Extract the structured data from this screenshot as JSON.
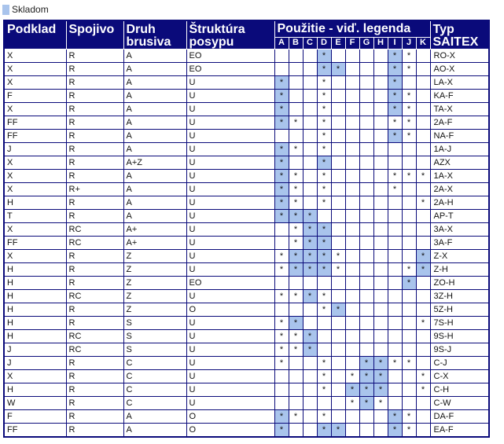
{
  "legend": {
    "label": "Skladom",
    "color": "#a9c4ec"
  },
  "header": {
    "podklad": "Podklad",
    "spojivo": "Spojivo",
    "druh": "Druh brusiva",
    "struktura": "Štruktúra posypu",
    "pouzitie": "Použitie - viď. legenda",
    "typ": "Typ SAITEX"
  },
  "letters": [
    "A",
    "B",
    "C",
    "D",
    "E",
    "F",
    "G",
    "H",
    "I",
    "J",
    "K"
  ],
  "rows": [
    {
      "p": "X",
      "s": "R",
      "d": "A",
      "st": "EO",
      "u": [
        "",
        "",
        "",
        "*",
        "",
        "",
        "",
        "",
        "*",
        "*",
        ""
      ],
      "h": [
        3,
        8
      ],
      "t": "RO-X"
    },
    {
      "p": "X",
      "s": "R",
      "d": "A",
      "st": "EO",
      "u": [
        "",
        "",
        "",
        "*",
        "*",
        "",
        "",
        "",
        "*",
        "*",
        ""
      ],
      "h": [
        3,
        4,
        8
      ],
      "t": "AO-X"
    },
    {
      "p": "X",
      "s": "R",
      "d": "A",
      "st": "U",
      "u": [
        "*",
        "",
        "",
        "*",
        "",
        "",
        "",
        "",
        "*",
        "",
        ""
      ],
      "h": [
        0,
        8
      ],
      "t": "LA-X"
    },
    {
      "p": "F",
      "s": "R",
      "d": "A",
      "st": "U",
      "u": [
        "*",
        "",
        "",
        "*",
        "",
        "",
        "",
        "",
        "*",
        "*",
        ""
      ],
      "h": [
        0,
        8
      ],
      "t": "KA-F"
    },
    {
      "p": "X",
      "s": "R",
      "d": "A",
      "st": "U",
      "u": [
        "*",
        "",
        "",
        "*",
        "",
        "",
        "",
        "",
        "*",
        "*",
        ""
      ],
      "h": [
        0,
        8
      ],
      "t": "TA-X"
    },
    {
      "p": "FF",
      "s": "R",
      "d": "A",
      "st": "U",
      "u": [
        "*",
        "*",
        "",
        "*",
        "",
        "",
        "",
        "",
        "*",
        "*",
        ""
      ],
      "h": [
        0
      ],
      "t": "2A-F"
    },
    {
      "p": "FF",
      "s": "R",
      "d": "A",
      "st": "U",
      "u": [
        "",
        "",
        "",
        "*",
        "",
        "",
        "",
        "",
        "*",
        "*",
        ""
      ],
      "h": [
        8
      ],
      "t": "NA-F"
    },
    {
      "p": "J",
      "s": "R",
      "d": "A",
      "st": "U",
      "u": [
        "*",
        "*",
        "",
        "*",
        "",
        "",
        "",
        "",
        "",
        "",
        ""
      ],
      "h": [
        0
      ],
      "t": "1A-J"
    },
    {
      "p": "X",
      "s": "R",
      "d": "A+Z",
      "st": "U",
      "u": [
        "*",
        "",
        "",
        "*",
        "",
        "",
        "",
        "",
        "",
        "",
        ""
      ],
      "h": [
        0,
        3
      ],
      "t": "AZX"
    },
    {
      "p": "X",
      "s": "R",
      "d": "A",
      "st": "U",
      "u": [
        "*",
        "*",
        "",
        "*",
        "",
        "",
        "",
        "",
        "*",
        "*",
        "*"
      ],
      "h": [
        0
      ],
      "t": "1A-X"
    },
    {
      "p": "X",
      "s": "R+",
      "d": "A",
      "st": "U",
      "u": [
        "*",
        "*",
        "",
        "*",
        "",
        "",
        "",
        "",
        "*",
        "",
        ""
      ],
      "h": [
        0
      ],
      "t": "2A-X"
    },
    {
      "p": "H",
      "s": "R",
      "d": "A",
      "st": "U",
      "u": [
        "*",
        "*",
        "",
        "*",
        "",
        "",
        "",
        "",
        "",
        "",
        "*"
      ],
      "h": [
        0
      ],
      "t": "2A-H"
    },
    {
      "p": "T",
      "s": "R",
      "d": "A",
      "st": "U",
      "u": [
        "*",
        "*",
        "*",
        "",
        "",
        "",
        "",
        "",
        "",
        "",
        ""
      ],
      "h": [
        0,
        1,
        2
      ],
      "t": "AP-T"
    },
    {
      "p": "X",
      "s": "RC",
      "d": "A+",
      "st": "U",
      "u": [
        "",
        "*",
        "*",
        "*",
        "",
        "",
        "",
        "",
        "",
        "",
        ""
      ],
      "h": [
        2,
        3
      ],
      "t": "3A-X"
    },
    {
      "p": "FF",
      "s": "RC",
      "d": "A+",
      "st": "U",
      "u": [
        "",
        "*",
        "*",
        "*",
        "",
        "",
        "",
        "",
        "",
        "",
        ""
      ],
      "h": [
        2,
        3
      ],
      "t": "3A-F"
    },
    {
      "p": "X",
      "s": "R",
      "d": "Z",
      "st": "U",
      "u": [
        "*",
        "*",
        "*",
        "*",
        "*",
        "",
        "",
        "",
        "",
        "",
        "*"
      ],
      "h": [
        1,
        2,
        3,
        10
      ],
      "t": "Z-X"
    },
    {
      "p": "H",
      "s": "R",
      "d": "Z",
      "st": "U",
      "u": [
        "*",
        "*",
        "*",
        "*",
        "*",
        "",
        "",
        "",
        "",
        "*",
        "*"
      ],
      "h": [
        1,
        2,
        3,
        10
      ],
      "t": "Z-H"
    },
    {
      "p": "H",
      "s": "R",
      "d": "Z",
      "st": "EO",
      "u": [
        "",
        "",
        "",
        "",
        "",
        "",
        "",
        "",
        "",
        "*",
        ""
      ],
      "h": [
        9
      ],
      "t": "ZO-H"
    },
    {
      "p": "H",
      "s": "RC",
      "d": "Z",
      "st": "U",
      "u": [
        "*",
        "*",
        "*",
        "*",
        "",
        "",
        "",
        "",
        "",
        "",
        ""
      ],
      "h": [
        2
      ],
      "t": "3Z-H"
    },
    {
      "p": "H",
      "s": "R",
      "d": "Z",
      "st": "O",
      "u": [
        "",
        "",
        "",
        "*",
        "*",
        "",
        "",
        "",
        "",
        "",
        ""
      ],
      "h": [
        4
      ],
      "t": "5Z-H"
    },
    {
      "p": "H",
      "s": "R",
      "d": "S",
      "st": "U",
      "u": [
        "*",
        "*",
        "",
        "",
        "",
        "",
        "",
        "",
        "",
        "",
        "*"
      ],
      "h": [
        1
      ],
      "t": "7S-H"
    },
    {
      "p": "H",
      "s": "RC",
      "d": "S",
      "st": "U",
      "u": [
        "*",
        "*",
        "*",
        "",
        "",
        "",
        "",
        "",
        "",
        "",
        ""
      ],
      "h": [
        2
      ],
      "t": "9S-H"
    },
    {
      "p": "J",
      "s": "RC",
      "d": "S",
      "st": "U",
      "u": [
        "*",
        "*",
        "*",
        "",
        "",
        "",
        "",
        "",
        "",
        "",
        ""
      ],
      "h": [
        2
      ],
      "t": "9S-J"
    },
    {
      "p": "J",
      "s": "R",
      "d": "C",
      "st": "U",
      "u": [
        "*",
        "",
        "",
        "*",
        "",
        "",
        "*",
        "*",
        "*",
        "*",
        ""
      ],
      "h": [
        6,
        7
      ],
      "t": "C-J"
    },
    {
      "p": "X",
      "s": "R",
      "d": "C",
      "st": "U",
      "u": [
        "",
        "",
        "",
        "*",
        "",
        "*",
        "*",
        "*",
        "",
        "",
        "*"
      ],
      "h": [
        6,
        7
      ],
      "t": "C-X"
    },
    {
      "p": "H",
      "s": "R",
      "d": "C",
      "st": "U",
      "u": [
        "",
        "",
        "",
        "*",
        "",
        "*",
        "*",
        "*",
        "",
        "",
        "*"
      ],
      "h": [
        5,
        6,
        7
      ],
      "t": "C-H"
    },
    {
      "p": "W",
      "s": "R",
      "d": "C",
      "st": "U",
      "u": [
        "",
        "",
        "",
        "",
        "",
        "*",
        "*",
        "*",
        "",
        "",
        ""
      ],
      "h": [
        6
      ],
      "t": "C-W"
    },
    {
      "p": "F",
      "s": "R",
      "d": "A",
      "st": "O",
      "u": [
        "*",
        "*",
        "",
        "*",
        "",
        "",
        "",
        "",
        "*",
        "*",
        ""
      ],
      "h": [
        0,
        8
      ],
      "t": "DA-F"
    },
    {
      "p": "FF",
      "s": "R",
      "d": "A",
      "st": "O",
      "u": [
        "*",
        "",
        "",
        "*",
        "*",
        "",
        "",
        "",
        "*",
        "*",
        ""
      ],
      "h": [
        0,
        3,
        4,
        8
      ],
      "t": "EA-F"
    }
  ]
}
